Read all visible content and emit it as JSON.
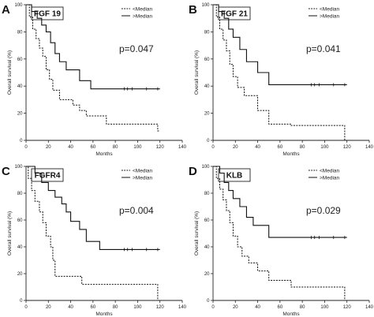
{
  "chart_data": [
    {
      "type": "line",
      "panel": "A",
      "label": "FGF 19",
      "pvalue": "p=0.047",
      "xlabel": "Months",
      "ylabel": "Overall survival (%)",
      "xlim": [
        0,
        140
      ],
      "ylim": [
        0,
        100
      ],
      "xticks": [
        0,
        20,
        40,
        60,
        80,
        100,
        120,
        140
      ],
      "yticks": [
        0,
        20,
        40,
        60,
        80,
        100
      ],
      "legend": [
        "<Median",
        ">Median"
      ],
      "series": [
        {
          "name": "<Median",
          "style": "dashed",
          "x": [
            0,
            3,
            3,
            6,
            6,
            9,
            9,
            12,
            12,
            15,
            15,
            18,
            18,
            21,
            21,
            24,
            24,
            30,
            30,
            42,
            42,
            48,
            48,
            54,
            54,
            72,
            72,
            118,
            118,
            120
          ],
          "y": [
            100,
            100,
            91,
            91,
            82,
            82,
            75,
            75,
            68,
            68,
            62,
            62,
            52,
            52,
            45,
            45,
            37,
            37,
            30,
            30,
            26,
            26,
            22,
            22,
            18,
            18,
            12,
            12,
            7,
            7
          ]
        },
        {
          "name": ">Median",
          "style": "solid",
          "x": [
            0,
            5,
            5,
            10,
            10,
            14,
            14,
            18,
            18,
            22,
            22,
            26,
            26,
            30,
            30,
            36,
            36,
            48,
            48,
            58,
            58,
            120
          ],
          "y": [
            100,
            100,
            95,
            95,
            90,
            90,
            85,
            85,
            80,
            80,
            72,
            72,
            64,
            64,
            58,
            58,
            52,
            52,
            44,
            44,
            38,
            38
          ]
        }
      ]
    },
    {
      "type": "line",
      "panel": "B",
      "label": "FGF 21",
      "pvalue": "p=0.041",
      "xlabel": "Months",
      "ylabel": "Overall survival (%)",
      "xlim": [
        0,
        140
      ],
      "ylim": [
        0,
        100
      ],
      "xticks": [
        0,
        20,
        40,
        60,
        80,
        100,
        120,
        140
      ],
      "yticks": [
        0,
        20,
        40,
        60,
        80,
        100
      ],
      "legend": [
        "<Median",
        ">Median"
      ],
      "series": [
        {
          "name": "<Median",
          "style": "dashed",
          "x": [
            0,
            3,
            3,
            6,
            6,
            9,
            9,
            12,
            12,
            15,
            15,
            18,
            18,
            22,
            22,
            28,
            28,
            40,
            40,
            50,
            50,
            70,
            70,
            118,
            118,
            120
          ],
          "y": [
            100,
            100,
            91,
            91,
            82,
            82,
            74,
            74,
            66,
            66,
            56,
            56,
            47,
            47,
            39,
            39,
            33,
            33,
            22,
            22,
            12,
            12,
            11,
            11,
            0,
            0
          ]
        },
        {
          "name": ">Median",
          "style": "solid",
          "x": [
            0,
            5,
            5,
            10,
            10,
            14,
            14,
            18,
            18,
            24,
            24,
            30,
            30,
            40,
            40,
            50,
            50,
            120
          ],
          "y": [
            100,
            100,
            95,
            95,
            90,
            90,
            82,
            82,
            76,
            76,
            67,
            67,
            58,
            58,
            50,
            50,
            41,
            41
          ]
        }
      ]
    },
    {
      "type": "line",
      "panel": "C",
      "label": "FGFR4",
      "pvalue": "p=0.004",
      "xlabel": "Months",
      "ylabel": "Overall survival (%)",
      "xlim": [
        0,
        140
      ],
      "ylim": [
        0,
        100
      ],
      "xticks": [
        0,
        20,
        40,
        60,
        80,
        100,
        120,
        140
      ],
      "yticks": [
        0,
        20,
        40,
        60,
        80,
        100
      ],
      "legend": [
        "<Median",
        ">Median"
      ],
      "series": [
        {
          "name": "<Median",
          "style": "dashed",
          "x": [
            0,
            2,
            2,
            5,
            5,
            8,
            8,
            12,
            12,
            15,
            15,
            18,
            18,
            22,
            22,
            24,
            24,
            26,
            26,
            50,
            50,
            118,
            118,
            120
          ],
          "y": [
            100,
            100,
            91,
            91,
            82,
            82,
            74,
            74,
            66,
            66,
            58,
            58,
            48,
            48,
            40,
            40,
            30,
            30,
            18,
            18,
            12,
            12,
            0,
            0
          ]
        },
        {
          "name": ">Median",
          "style": "solid",
          "x": [
            0,
            8,
            8,
            14,
            14,
            20,
            20,
            26,
            26,
            32,
            32,
            36,
            36,
            40,
            40,
            48,
            48,
            54,
            54,
            66,
            66,
            120
          ],
          "y": [
            100,
            100,
            95,
            95,
            88,
            88,
            82,
            82,
            77,
            77,
            72,
            72,
            66,
            66,
            59,
            59,
            53,
            53,
            44,
            44,
            38,
            38
          ]
        }
      ]
    },
    {
      "type": "line",
      "panel": "D",
      "label": "KLB",
      "pvalue": "p=0.029",
      "xlabel": "Months",
      "ylabel": "Overall survival (%)",
      "xlim": [
        0,
        140
      ],
      "ylim": [
        0,
        100
      ],
      "xticks": [
        0,
        20,
        40,
        60,
        80,
        100,
        120,
        140
      ],
      "yticks": [
        0,
        20,
        40,
        60,
        80,
        100
      ],
      "legend": [
        "<Median",
        ">Median"
      ],
      "series": [
        {
          "name": "<Median",
          "style": "dashed",
          "x": [
            0,
            3,
            3,
            6,
            6,
            9,
            9,
            12,
            12,
            15,
            15,
            18,
            18,
            22,
            22,
            26,
            26,
            32,
            32,
            40,
            40,
            50,
            50,
            70,
            70,
            118,
            118,
            120
          ],
          "y": [
            100,
            100,
            91,
            91,
            83,
            83,
            75,
            75,
            67,
            67,
            58,
            58,
            48,
            48,
            40,
            40,
            33,
            33,
            28,
            28,
            22,
            22,
            15,
            15,
            10,
            10,
            0,
            0
          ]
        },
        {
          "name": ">Median",
          "style": "solid",
          "x": [
            0,
            6,
            6,
            10,
            10,
            14,
            14,
            18,
            18,
            24,
            24,
            30,
            30,
            36,
            36,
            50,
            50,
            120
          ],
          "y": [
            100,
            100,
            95,
            95,
            88,
            88,
            82,
            82,
            76,
            76,
            70,
            70,
            62,
            62,
            56,
            56,
            47,
            47
          ]
        }
      ]
    }
  ]
}
